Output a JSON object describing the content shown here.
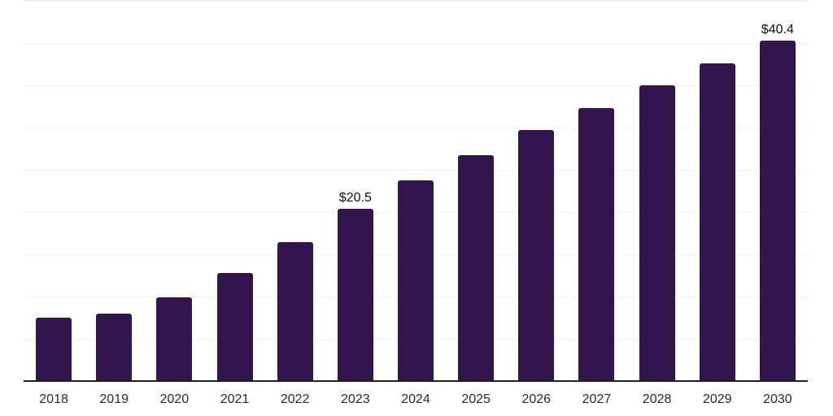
{
  "chart_data": {
    "type": "bar",
    "title": "",
    "xlabel": "",
    "ylabel": "",
    "categories": [
      "2018",
      "2019",
      "2020",
      "2021",
      "2022",
      "2023",
      "2024",
      "2025",
      "2026",
      "2027",
      "2028",
      "2029",
      "2030"
    ],
    "values": [
      7.6,
      8.1,
      10.0,
      12.9,
      16.5,
      20.5,
      23.8,
      26.8,
      29.8,
      32.4,
      35.1,
      37.7,
      40.4
    ],
    "value_labels": {
      "2023": "$20.5",
      "2030": "$40.4"
    },
    "value_prefix": "$",
    "ylim": [
      0,
      45
    ],
    "gridline_step": 5,
    "grid": true,
    "legend": false,
    "y_axis_tick_labels_visible": false,
    "colors": {
      "bar": "#32154D",
      "axis_line": "#1F1F1F",
      "gridline": "#F0F0F0",
      "tick_label": "#2B2B2B",
      "value_label": "#0D0D0D",
      "background": "#FFFFFF"
    }
  }
}
